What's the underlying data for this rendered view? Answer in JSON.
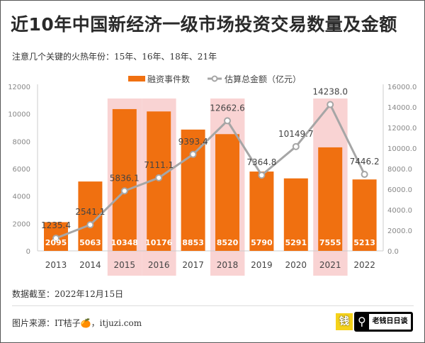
{
  "title": "近10年中国新经济一级市场投资交易数量及金额",
  "subtitle": "注意几个关键的火热年份：15年、16年、18年、21年",
  "footer": {
    "date_note": "数据截至：2022年12月15日",
    "source": "图片来源：IT桔子🍊，itjuzi.com",
    "logo_text": "老钱日日谈",
    "logo_icon": "钱"
  },
  "chart_data": {
    "type": "bar+line",
    "categories": [
      "2013",
      "2014",
      "2015",
      "2016",
      "2017",
      "2018",
      "2019",
      "2020",
      "2021",
      "2022"
    ],
    "highlighted": [
      "2015",
      "2016",
      "2018",
      "2021"
    ],
    "series": [
      {
        "name": "融资事件数",
        "type": "bar",
        "axis": "left",
        "color": "#f07010",
        "values": [
          2095,
          5063,
          10348,
          10176,
          8853,
          8520,
          5790,
          5291,
          7555,
          5213
        ],
        "labels": [
          "2095",
          "5063",
          "10348",
          "10176",
          "8853",
          "8520",
          "5790",
          "5291",
          "7555",
          "5213"
        ]
      },
      {
        "name": "估算总金额（亿元）",
        "type": "line",
        "axis": "right",
        "color": "#a6a6a6",
        "values": [
          1235.4,
          2541.1,
          5836.1,
          7111.1,
          9393.4,
          12662.6,
          7364.8,
          10149.7,
          14238.0,
          7446.2
        ],
        "labels": [
          "1235.4",
          "2541.1",
          "5836.1",
          "7111.1",
          "9393.4",
          "12662.6",
          "7364.8",
          "10149.7",
          "14238.0",
          "7446.2"
        ]
      }
    ],
    "y_left": {
      "range": [
        0,
        12000
      ],
      "ticks": [
        "0",
        "2000",
        "4000",
        "6000",
        "8000",
        "10000",
        "12000"
      ]
    },
    "y_right": {
      "range": [
        0,
        16000
      ],
      "ticks": [
        "0.0",
        "2000.0",
        "4000.0",
        "6000.0",
        "8000.0",
        "10000.0",
        "12000.0",
        "14000.0",
        "16000.0"
      ]
    },
    "legend": "top-center",
    "highlight_color": "#f9d3d3",
    "grid": false
  }
}
